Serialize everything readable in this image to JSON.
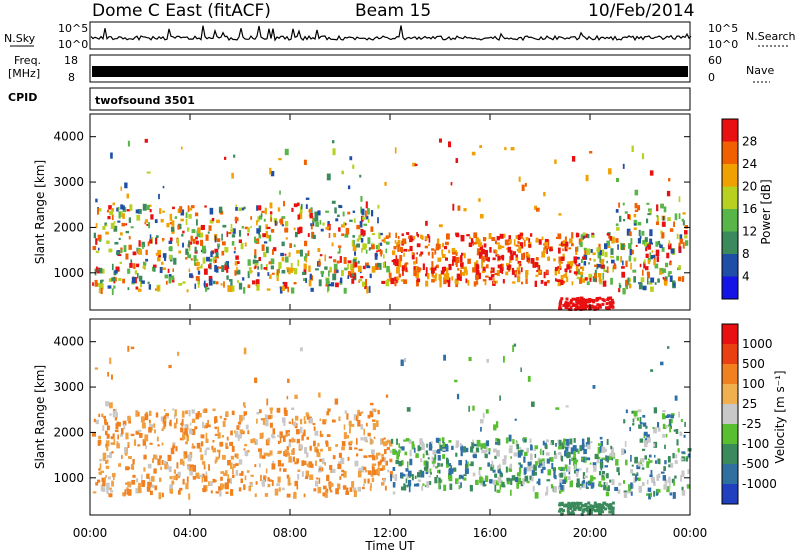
{
  "header": {
    "station": "Dome C East (fitACF)",
    "beam": "Beam 15",
    "date": "10/Feb/2014"
  },
  "summary_panels": {
    "nsky_label": "N.Sky",
    "nsky_ticks": [
      "10^5",
      "10^0"
    ],
    "nsearch_label": "N.Search",
    "nsearch_ticks": [
      "10^5",
      "10^0"
    ],
    "freq_label_line1": "Freq.",
    "freq_label_line2": "[MHz]",
    "freq_ticks": [
      "18",
      "8"
    ],
    "nave_label": "Nave",
    "nave_ticks": [
      "60",
      "0"
    ],
    "cpid_label": "CPID",
    "cpid_value": "twofsound 3501"
  },
  "chart_data": [
    {
      "type": "heatmap",
      "name": "power",
      "ylabel": "Slant Range [km]",
      "yticks": [
        1000,
        2000,
        3000,
        4000
      ],
      "ylim": [
        180,
        4500
      ],
      "colorbar_label": "Power [dB]",
      "colorbar_ticks": [
        "4",
        "8",
        "12",
        "16",
        "20",
        "24",
        "28"
      ],
      "colorbar_colors": [
        "#1414e6",
        "#1e4ea8",
        "#3a8a5c",
        "#58b548",
        "#b8d020",
        "#f0a000",
        "#f06000",
        "#e81010"
      ]
    },
    {
      "type": "heatmap",
      "name": "velocity",
      "ylabel": "Slant Range [km]",
      "yticks": [
        1000,
        2000,
        3000,
        4000
      ],
      "ylim": [
        180,
        4500
      ],
      "colorbar_label": "Velocity [m s⁻¹]",
      "colorbar_ticks": [
        "1000",
        "500",
        "100",
        "25",
        "-25",
        "-100",
        "-500",
        "-1000"
      ],
      "colorbar_colors": [
        "#2040c0",
        "#3070a0",
        "#3a8a5c",
        "#58c030",
        "#c8c8c8",
        "#f0b050",
        "#f08020",
        "#e84010",
        "#e81010"
      ]
    }
  ],
  "xaxis": {
    "label": "Time UT",
    "ticks": [
      "00:00",
      "04:00",
      "08:00",
      "12:00",
      "16:00",
      "20:00",
      "00:00"
    ]
  }
}
